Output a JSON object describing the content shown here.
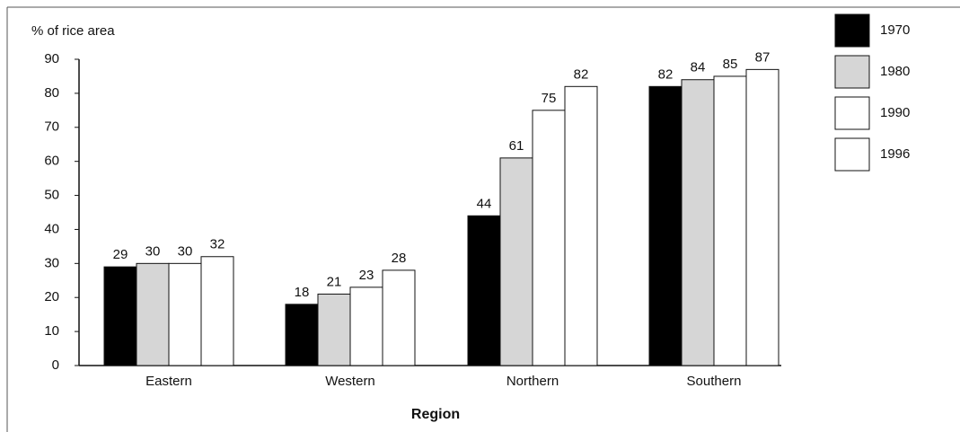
{
  "chart_data": {
    "type": "bar",
    "y_label": "% of rice area",
    "x_label": "Region",
    "categories": [
      "Eastern",
      "Western",
      "Northern",
      "Southern"
    ],
    "series": [
      {
        "name": "1970",
        "color": "#000000",
        "values": [
          29,
          18,
          44,
          82
        ]
      },
      {
        "name": "1980",
        "color": "#d6d6d6",
        "values": [
          30,
          21,
          61,
          84
        ]
      },
      {
        "name": "1990",
        "color": "#ffffff",
        "values": [
          30,
          23,
          75,
          85
        ]
      },
      {
        "name": "1996",
        "color": "#ffffff",
        "values": [
          32,
          28,
          82,
          87
        ]
      }
    ],
    "ylim": [
      0,
      90
    ],
    "yticks": [
      0,
      10,
      20,
      30,
      40,
      50,
      60,
      70,
      80,
      90
    ],
    "legend": "right"
  }
}
